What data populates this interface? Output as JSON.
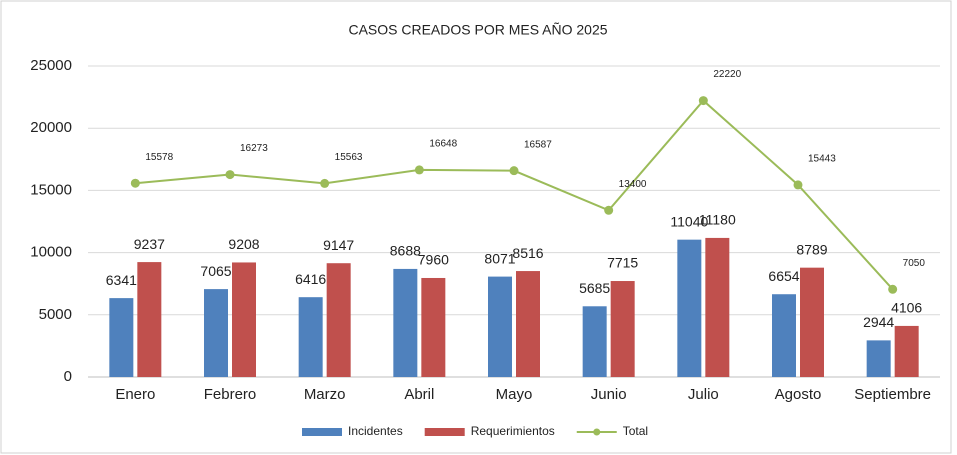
{
  "chart_data": {
    "type": "bar",
    "title": "CASOS CREADOS POR MES AÑO 2025",
    "categories": [
      "Enero",
      "Febrero",
      "Marzo",
      "Abril",
      "Mayo",
      "Junio",
      "Julio",
      "Agosto",
      "Septiembre"
    ],
    "series": [
      {
        "name": "Incidentes",
        "color": "#4f81bd",
        "values": [
          6341,
          7065,
          6416,
          8688,
          8071,
          5685,
          11040,
          6654,
          2944
        ]
      },
      {
        "name": "Requerimientos",
        "color": "#c0504d",
        "values": [
          9237,
          9208,
          9147,
          7960,
          8516,
          7715,
          11180,
          8789,
          4106
        ]
      },
      {
        "name": "Total",
        "color": "#9bbb59",
        "type": "line",
        "values": [
          15578,
          16273,
          15563,
          16648,
          16587,
          13400,
          22220,
          15443,
          7050
        ]
      }
    ],
    "ylim": [
      0,
      25000
    ],
    "yticks": [
      0,
      5000,
      10000,
      15000,
      20000,
      25000
    ],
    "grid": true,
    "legend": "bottom"
  }
}
